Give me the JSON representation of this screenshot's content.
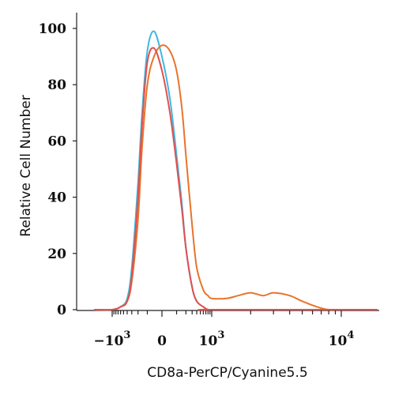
{
  "chart_data": {
    "type": "line",
    "xlabel": "CD8a-PerCP/Cyanine5.5",
    "ylabel": "Relative Cell Number",
    "x_scale": "biexponential",
    "xlim": [
      -3000,
      20000
    ],
    "ylim": [
      0,
      100
    ],
    "grid": false,
    "y_ticks": [
      {
        "value": 0,
        "label": "0"
      },
      {
        "value": 20,
        "label": "20"
      },
      {
        "value": 40,
        "label": "40"
      },
      {
        "value": 60,
        "label": "60"
      },
      {
        "value": 80,
        "label": "80"
      },
      {
        "value": 100,
        "label": "100"
      }
    ],
    "x_ticks": [
      {
        "value": -1000,
        "base": "−10",
        "exp": "3"
      },
      {
        "value": 0,
        "base": "0",
        "exp": ""
      },
      {
        "value": 1000,
        "base": "10",
        "exp": "3"
      },
      {
        "value": 10000,
        "base": "10",
        "exp": "4"
      }
    ],
    "series": [
      {
        "color": "#3fb8e0",
        "x": [
          -3000,
          -1000,
          -600,
          -400,
          -300,
          -200,
          -150,
          -100,
          -50,
          0,
          50,
          100,
          150,
          200,
          300,
          400,
          600,
          800,
          1000,
          2000,
          5000,
          20000
        ],
        "y": [
          0,
          0,
          1,
          4,
          15,
          45,
          70,
          92,
          99,
          90,
          75,
          55,
          38,
          22,
          8,
          3,
          1,
          0,
          0,
          0,
          0,
          0
        ]
      },
      {
        "color": "#e8742a",
        "x": [
          -3000,
          -1000,
          -600,
          -400,
          -300,
          -200,
          -150,
          -100,
          -50,
          0,
          50,
          100,
          150,
          200,
          300,
          400,
          600,
          800,
          1000,
          1300,
          1600,
          2000,
          2500,
          3000,
          4000,
          5000,
          6500,
          8000,
          10000,
          20000
        ],
        "y": [
          0,
          0,
          1,
          3,
          10,
          32,
          58,
          80,
          90,
          94,
          92,
          85,
          72,
          55,
          30,
          15,
          7,
          5,
          4,
          4,
          5,
          6,
          5,
          6,
          5,
          3,
          1,
          0,
          0,
          0
        ]
      },
      {
        "color": "#e05050",
        "x": [
          -3000,
          -1000,
          -600,
          -400,
          -300,
          -200,
          -150,
          -100,
          -50,
          0,
          50,
          100,
          150,
          200,
          300,
          400,
          600,
          800,
          1000,
          20000
        ],
        "y": [
          0,
          0,
          1,
          3,
          12,
          40,
          66,
          88,
          93,
          85,
          70,
          52,
          36,
          22,
          8,
          3,
          1,
          0,
          0,
          0
        ]
      }
    ]
  }
}
